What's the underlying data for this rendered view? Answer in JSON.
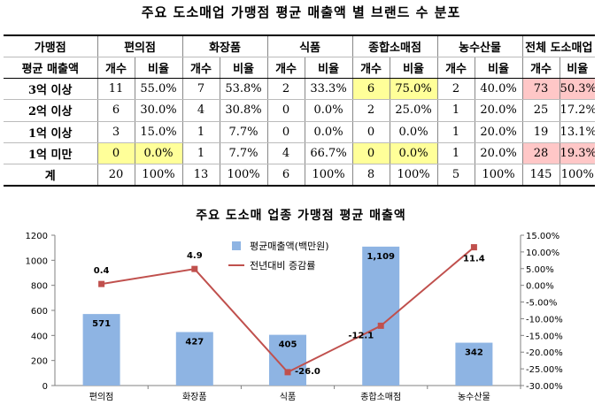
{
  "table": {
    "title": "주요 도소매업 가맹점 평균 매출액 별 브랜드 수 분포",
    "corner_top": "가맹점",
    "corner_bottom": "평균 매출액",
    "groups": [
      "편의점",
      "화장품",
      "식품",
      "종합소매점",
      "농수산물",
      "전체 도소매업"
    ],
    "sub_count": "개수",
    "sub_ratio": "비율",
    "rows": [
      {
        "label": "3억 이상",
        "cells": [
          "11",
          "55.0%",
          "7",
          "53.8%",
          "2",
          "33.3%",
          "6",
          "75.0%",
          "2",
          "40.0%",
          "73",
          "50.3%"
        ]
      },
      {
        "label": "2억 이상",
        "cells": [
          "6",
          "30.0%",
          "4",
          "30.8%",
          "0",
          "0.0%",
          "2",
          "25.0%",
          "1",
          "20.0%",
          "25",
          "17.2%"
        ]
      },
      {
        "label": "1억 이상",
        "cells": [
          "3",
          "15.0%",
          "1",
          "7.7%",
          "0",
          "0.0%",
          "0",
          "0.0%",
          "1",
          "20.0%",
          "19",
          "13.1%"
        ]
      },
      {
        "label": "1억 미만",
        "cells": [
          "0",
          "0.0%",
          "1",
          "7.7%",
          "4",
          "66.7%",
          "0",
          "0.0%",
          "1",
          "20.0%",
          "28",
          "19.3%"
        ]
      },
      {
        "label": "계",
        "cells": [
          "20",
          "100%",
          "13",
          "100%",
          "6",
          "100%",
          "8",
          "100%",
          "5",
          "100%",
          "145",
          "100%"
        ]
      }
    ]
  },
  "colors": {
    "bar": "#8eb4e3",
    "line": "#c0504d",
    "highlight_yellow": "#ffff99",
    "highlight_pink": "#ffc7c7"
  },
  "chart_data": {
    "type": "bar",
    "title": "주요 도소매 업종 가맹점 평균 매출액",
    "categories": [
      "편의점",
      "화장품",
      "식품",
      "종합소매점",
      "농수산물"
    ],
    "series": [
      {
        "name": "평균매출액(백만원)",
        "type": "bar",
        "axis": "left",
        "values": [
          571,
          427,
          405,
          1109,
          342
        ],
        "labels": [
          "571",
          "427",
          "405",
          "1,109",
          "342"
        ]
      },
      {
        "name": "전년대비 증감률",
        "type": "line",
        "axis": "right",
        "values": [
          0.4,
          4.9,
          -26.0,
          -12.1,
          11.4
        ],
        "labels": [
          "0.4",
          "4.9",
          "-26.0",
          "-12.1",
          "11.4"
        ]
      }
    ],
    "y_left": {
      "min": 0,
      "max": 1200,
      "ticks": [
        "0",
        "200",
        "400",
        "600",
        "800",
        "1000",
        "1200"
      ]
    },
    "y_right": {
      "min": -30,
      "max": 15,
      "ticks": [
        "-30.00%",
        "-25.00%",
        "-20.00%",
        "-15.00%",
        "-10.00%",
        "-5.00%",
        "0.00%",
        "5.00%",
        "10.00%",
        "15.00%"
      ]
    },
    "legend_position": "top-center",
    "grid": false
  }
}
